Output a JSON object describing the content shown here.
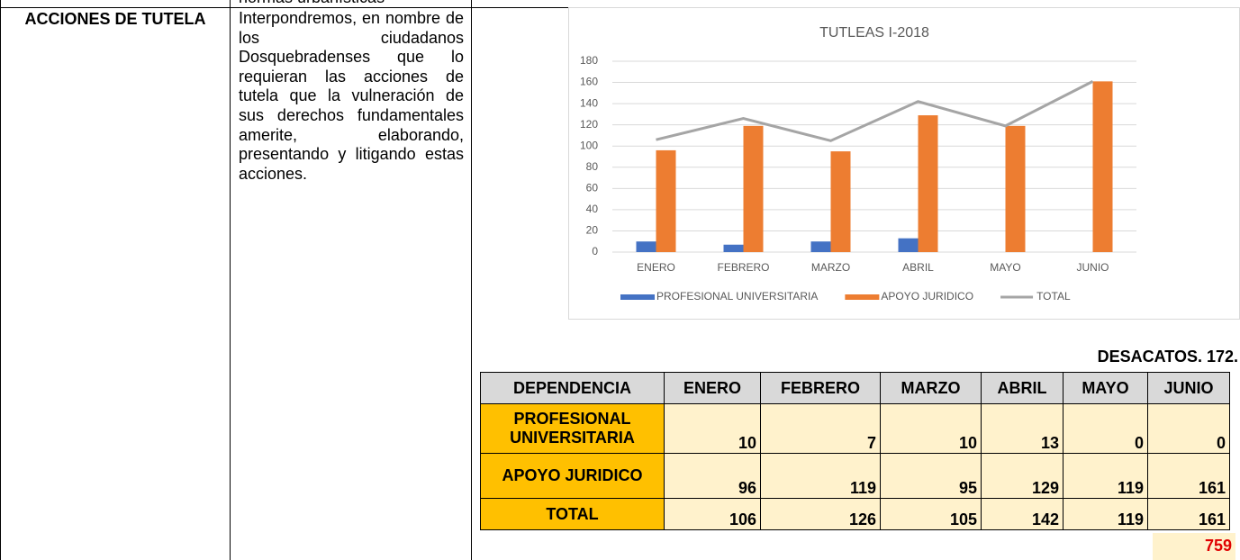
{
  "top_cell_text": "normas urbanísticas",
  "section_title": "ACCIONES DE TUTELA",
  "description": "Interpondremos, en nombre de los ciudadanos Dosquebradenses que lo requieran las acciones de tutela que la vulneración de sus derechos fundamentales amerite, elaborando, presentando y litigando estas acciones.",
  "chart_data": {
    "type": "bar",
    "title": "TUTLEAS I-2018",
    "categories": [
      "ENERO",
      "FEBRERO",
      "MARZO",
      "ABRIL",
      "MAYO",
      "JUNIO"
    ],
    "series": [
      {
        "name": "PROFESIONAL UNIVERSITARIA",
        "color": "#4472c4",
        "type": "bar",
        "values": [
          10,
          7,
          10,
          13,
          0,
          0
        ]
      },
      {
        "name": "APOYO JURIDICO",
        "color": "#ed7d31",
        "type": "bar",
        "values": [
          96,
          119,
          95,
          129,
          119,
          161
        ]
      },
      {
        "name": "TOTAL",
        "color": "#a5a5a5",
        "type": "line",
        "values": [
          106,
          126,
          105,
          142,
          119,
          161
        ]
      }
    ],
    "ylim": [
      0,
      180
    ],
    "yticks": [
      0,
      20,
      40,
      60,
      80,
      100,
      120,
      140,
      160,
      180
    ],
    "grid": true,
    "legend": "bottom"
  },
  "table_caption": "DESACATOS. 172.",
  "table": {
    "header": [
      "DEPENDENCIA",
      "ENERO",
      "FEBRERO",
      "MARZO",
      "ABRIL",
      "MAYO",
      "JUNIO"
    ],
    "rows": [
      [
        "PROFESIONAL UNIVERSITARIA",
        "10",
        "7",
        "10",
        "13",
        "0",
        "0"
      ],
      [
        "APOYO JURIDICO",
        "96",
        "119",
        "95",
        "129",
        "119",
        "161"
      ],
      [
        "TOTAL",
        "106",
        "126",
        "105",
        "142",
        "119",
        "161"
      ]
    ],
    "grand_total": "759"
  }
}
